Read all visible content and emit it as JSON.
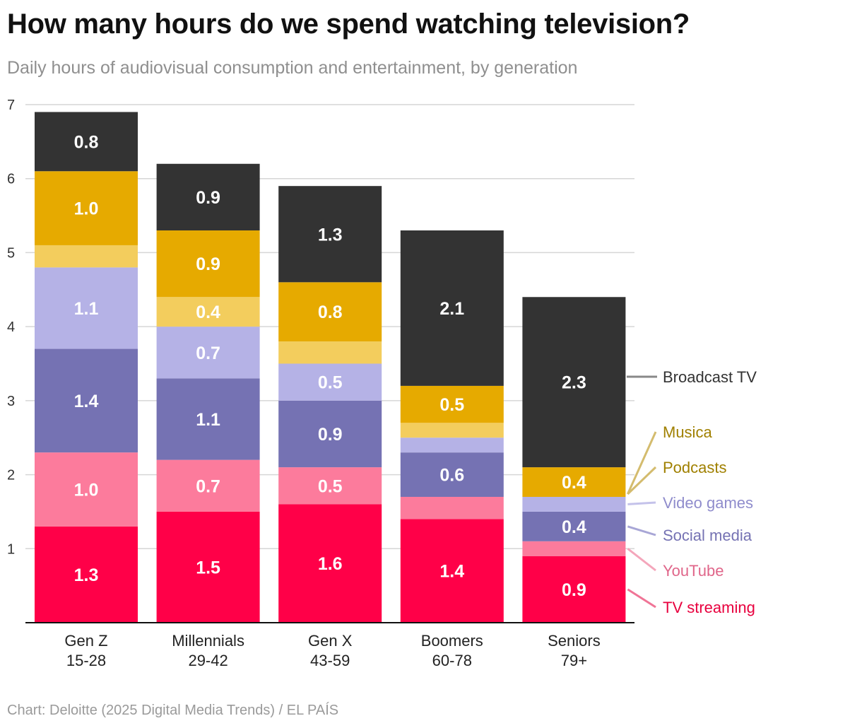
{
  "header": {
    "title": "How many hours do we spend watching television?",
    "subtitle": "Daily hours of audiovisual consumption and entertainment, by generation"
  },
  "footer": {
    "source": "Chart: Deloitte (2025 Digital Media Trends) / EL PAÍS"
  },
  "chart_data": {
    "type": "bar",
    "stacked": true,
    "title": "How many hours do we spend watching television?",
    "subtitle": "Daily hours of audiovisual consumption and entertainment, by generation",
    "xlabel": "",
    "ylabel": "",
    "ylim": [
      0,
      7
    ],
    "yticks": [
      1,
      2,
      3,
      4,
      5,
      6,
      7
    ],
    "grid": true,
    "categories": [
      {
        "name": "Gen Z",
        "ages": "15-28"
      },
      {
        "name": "Millennials",
        "ages": "29-42"
      },
      {
        "name": "Gen X",
        "ages": "43-59"
      },
      {
        "name": "Boomers",
        "ages": "60-78"
      },
      {
        "name": "Seniors",
        "ages": "79+"
      }
    ],
    "series": [
      {
        "name": "TV streaming",
        "color": "#ff0048",
        "label_color": "#e8003e",
        "values": [
          1.3,
          1.5,
          1.6,
          1.4,
          0.9
        ],
        "labels": [
          "1.3",
          "1.5",
          "1.6",
          "1.4",
          "0.9"
        ]
      },
      {
        "name": "YouTube",
        "color": "#fc7b9c",
        "label_color": "#e0668a",
        "values": [
          1.0,
          0.7,
          0.5,
          0.3,
          0.2
        ],
        "labels": [
          "1.0",
          "0.7",
          "0.5",
          "",
          ""
        ]
      },
      {
        "name": "Social media",
        "color": "#7572b3",
        "label_color": "#7572b3",
        "values": [
          1.4,
          1.1,
          0.9,
          0.6,
          0.4
        ],
        "labels": [
          "1.4",
          "1.1",
          "0.9",
          "0.6",
          "0.4"
        ]
      },
      {
        "name": "Video games",
        "color": "#b5b2e6",
        "label_color": "#8f8ccc",
        "values": [
          1.1,
          0.7,
          0.5,
          0.2,
          0.2
        ],
        "labels": [
          "1.1",
          "0.7",
          "0.5",
          "",
          ""
        ]
      },
      {
        "name": "Podcasts",
        "color": "#f3cd5d",
        "label_color": "#a08000",
        "values": [
          0.3,
          0.4,
          0.3,
          0.2,
          0.0
        ],
        "labels": [
          "",
          "0.4",
          "",
          "",
          ""
        ]
      },
      {
        "name": "Musica",
        "color": "#e6aa00",
        "label_color": "#a08000",
        "values": [
          1.0,
          0.9,
          0.8,
          0.5,
          0.4
        ],
        "labels": [
          "1.0",
          "0.9",
          "0.8",
          "0.5",
          "0.4"
        ]
      },
      {
        "name": "Broadcast TV",
        "color": "#333333",
        "label_color": "#333333",
        "values": [
          0.8,
          0.9,
          1.3,
          2.1,
          2.3
        ],
        "labels": [
          "0.8",
          "0.9",
          "1.3",
          "2.1",
          "2.3"
        ]
      }
    ]
  }
}
